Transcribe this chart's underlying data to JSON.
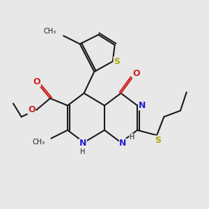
{
  "bg_color": "#e8e8e8",
  "bond_color": "#1a1a1a",
  "N_color": "#2222cc",
  "O_color": "#cc2222",
  "S_color": "#aaaa00",
  "lw": 1.5,
  "figsize": [
    3.0,
    3.0
  ],
  "dpi": 100,
  "xlim": [
    0,
    10
  ],
  "ylim": [
    0.5,
    10
  ]
}
